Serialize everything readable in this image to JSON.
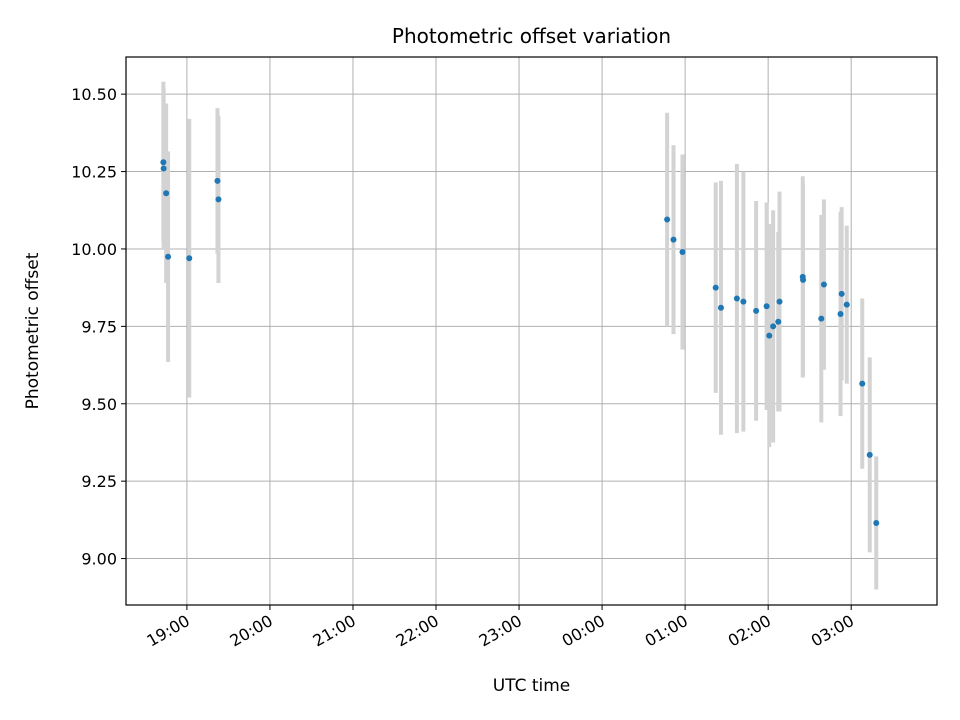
{
  "chart_data": {
    "type": "scatter",
    "title": "Photometric offset variation",
    "xlabel": "UTC time",
    "ylabel": "Photometric offset",
    "x_tick_labels": [
      "19:00",
      "20:00",
      "21:00",
      "22:00",
      "23:00",
      "00:00",
      "01:00",
      "02:00",
      "03:00"
    ],
    "x_tick_minutes": [
      1140,
      1200,
      1260,
      1320,
      1380,
      1440,
      1500,
      1560,
      1620
    ],
    "xlim_minutes": [
      1096,
      1682
    ],
    "y_tick_labels": [
      "9.00",
      "9.25",
      "9.50",
      "9.75",
      "10.00",
      "10.25",
      "10.50"
    ],
    "y_ticks": [
      9.0,
      9.25,
      9.5,
      9.75,
      10.0,
      10.25,
      10.5
    ],
    "ylim": [
      8.85,
      10.62
    ],
    "grid": true,
    "marker_color": "#1f77b4",
    "errorbar_color": "#d3d3d3",
    "points": [
      {
        "time": "18:43",
        "x": 1123.0,
        "y": 10.28,
        "err": 0.26
      },
      {
        "time": "18:43",
        "x": 1123.2,
        "y": 10.26,
        "err": 0.26
      },
      {
        "time": "18:45",
        "x": 1125.0,
        "y": 10.18,
        "err": 0.29
      },
      {
        "time": "18:46",
        "x": 1126.4,
        "y": 9.975,
        "err": 0.34
      },
      {
        "time": "19:02",
        "x": 1141.7,
        "y": 9.97,
        "err": 0.45
      },
      {
        "time": "19:22",
        "x": 1162.1,
        "y": 10.22,
        "err": 0.235
      },
      {
        "time": "19:23",
        "x": 1162.8,
        "y": 10.16,
        "err": 0.27
      },
      {
        "time": "00:47",
        "x": 1487.0,
        "y": 10.095,
        "err": 0.345
      },
      {
        "time": "00:52",
        "x": 1491.6,
        "y": 10.03,
        "err": 0.305
      },
      {
        "time": "00:58",
        "x": 1498.1,
        "y": 9.99,
        "err": 0.315
      },
      {
        "time": "01:22",
        "x": 1522.1,
        "y": 9.875,
        "err": 0.34
      },
      {
        "time": "01:26",
        "x": 1525.9,
        "y": 9.81,
        "err": 0.41
      },
      {
        "time": "01:37",
        "x": 1537.4,
        "y": 9.84,
        "err": 0.435
      },
      {
        "time": "01:42",
        "x": 1542.1,
        "y": 9.83,
        "err": 0.42
      },
      {
        "time": "01:51",
        "x": 1551.3,
        "y": 9.8,
        "err": 0.355
      },
      {
        "time": "01:59",
        "x": 1558.9,
        "y": 9.815,
        "err": 0.335
      },
      {
        "time": "02:01",
        "x": 1560.8,
        "y": 9.72,
        "err": 0.36
      },
      {
        "time": "02:04",
        "x": 1563.6,
        "y": 9.75,
        "err": 0.375
      },
      {
        "time": "02:07",
        "x": 1567.3,
        "y": 9.765,
        "err": 0.29
      },
      {
        "time": "02:08",
        "x": 1568.2,
        "y": 9.83,
        "err": 0.355
      },
      {
        "time": "02:25",
        "x": 1585.0,
        "y": 9.91,
        "err": 0.325
      },
      {
        "time": "02:25",
        "x": 1585.2,
        "y": 9.9,
        "err": 0.31
      },
      {
        "time": "02:38",
        "x": 1598.4,
        "y": 9.775,
        "err": 0.335
      },
      {
        "time": "02:40",
        "x": 1600.3,
        "y": 9.885,
        "err": 0.275
      },
      {
        "time": "02:52",
        "x": 1612.3,
        "y": 9.79,
        "err": 0.33
      },
      {
        "time": "02:53",
        "x": 1613.1,
        "y": 9.855,
        "err": 0.28
      },
      {
        "time": "02:57",
        "x": 1616.8,
        "y": 9.82,
        "err": 0.255
      },
      {
        "time": "03:08",
        "x": 1628.0,
        "y": 9.565,
        "err": 0.275
      },
      {
        "time": "03:13",
        "x": 1633.4,
        "y": 9.335,
        "err": 0.315
      },
      {
        "time": "03:18",
        "x": 1638.1,
        "y": 9.115,
        "err": 0.215
      }
    ]
  }
}
